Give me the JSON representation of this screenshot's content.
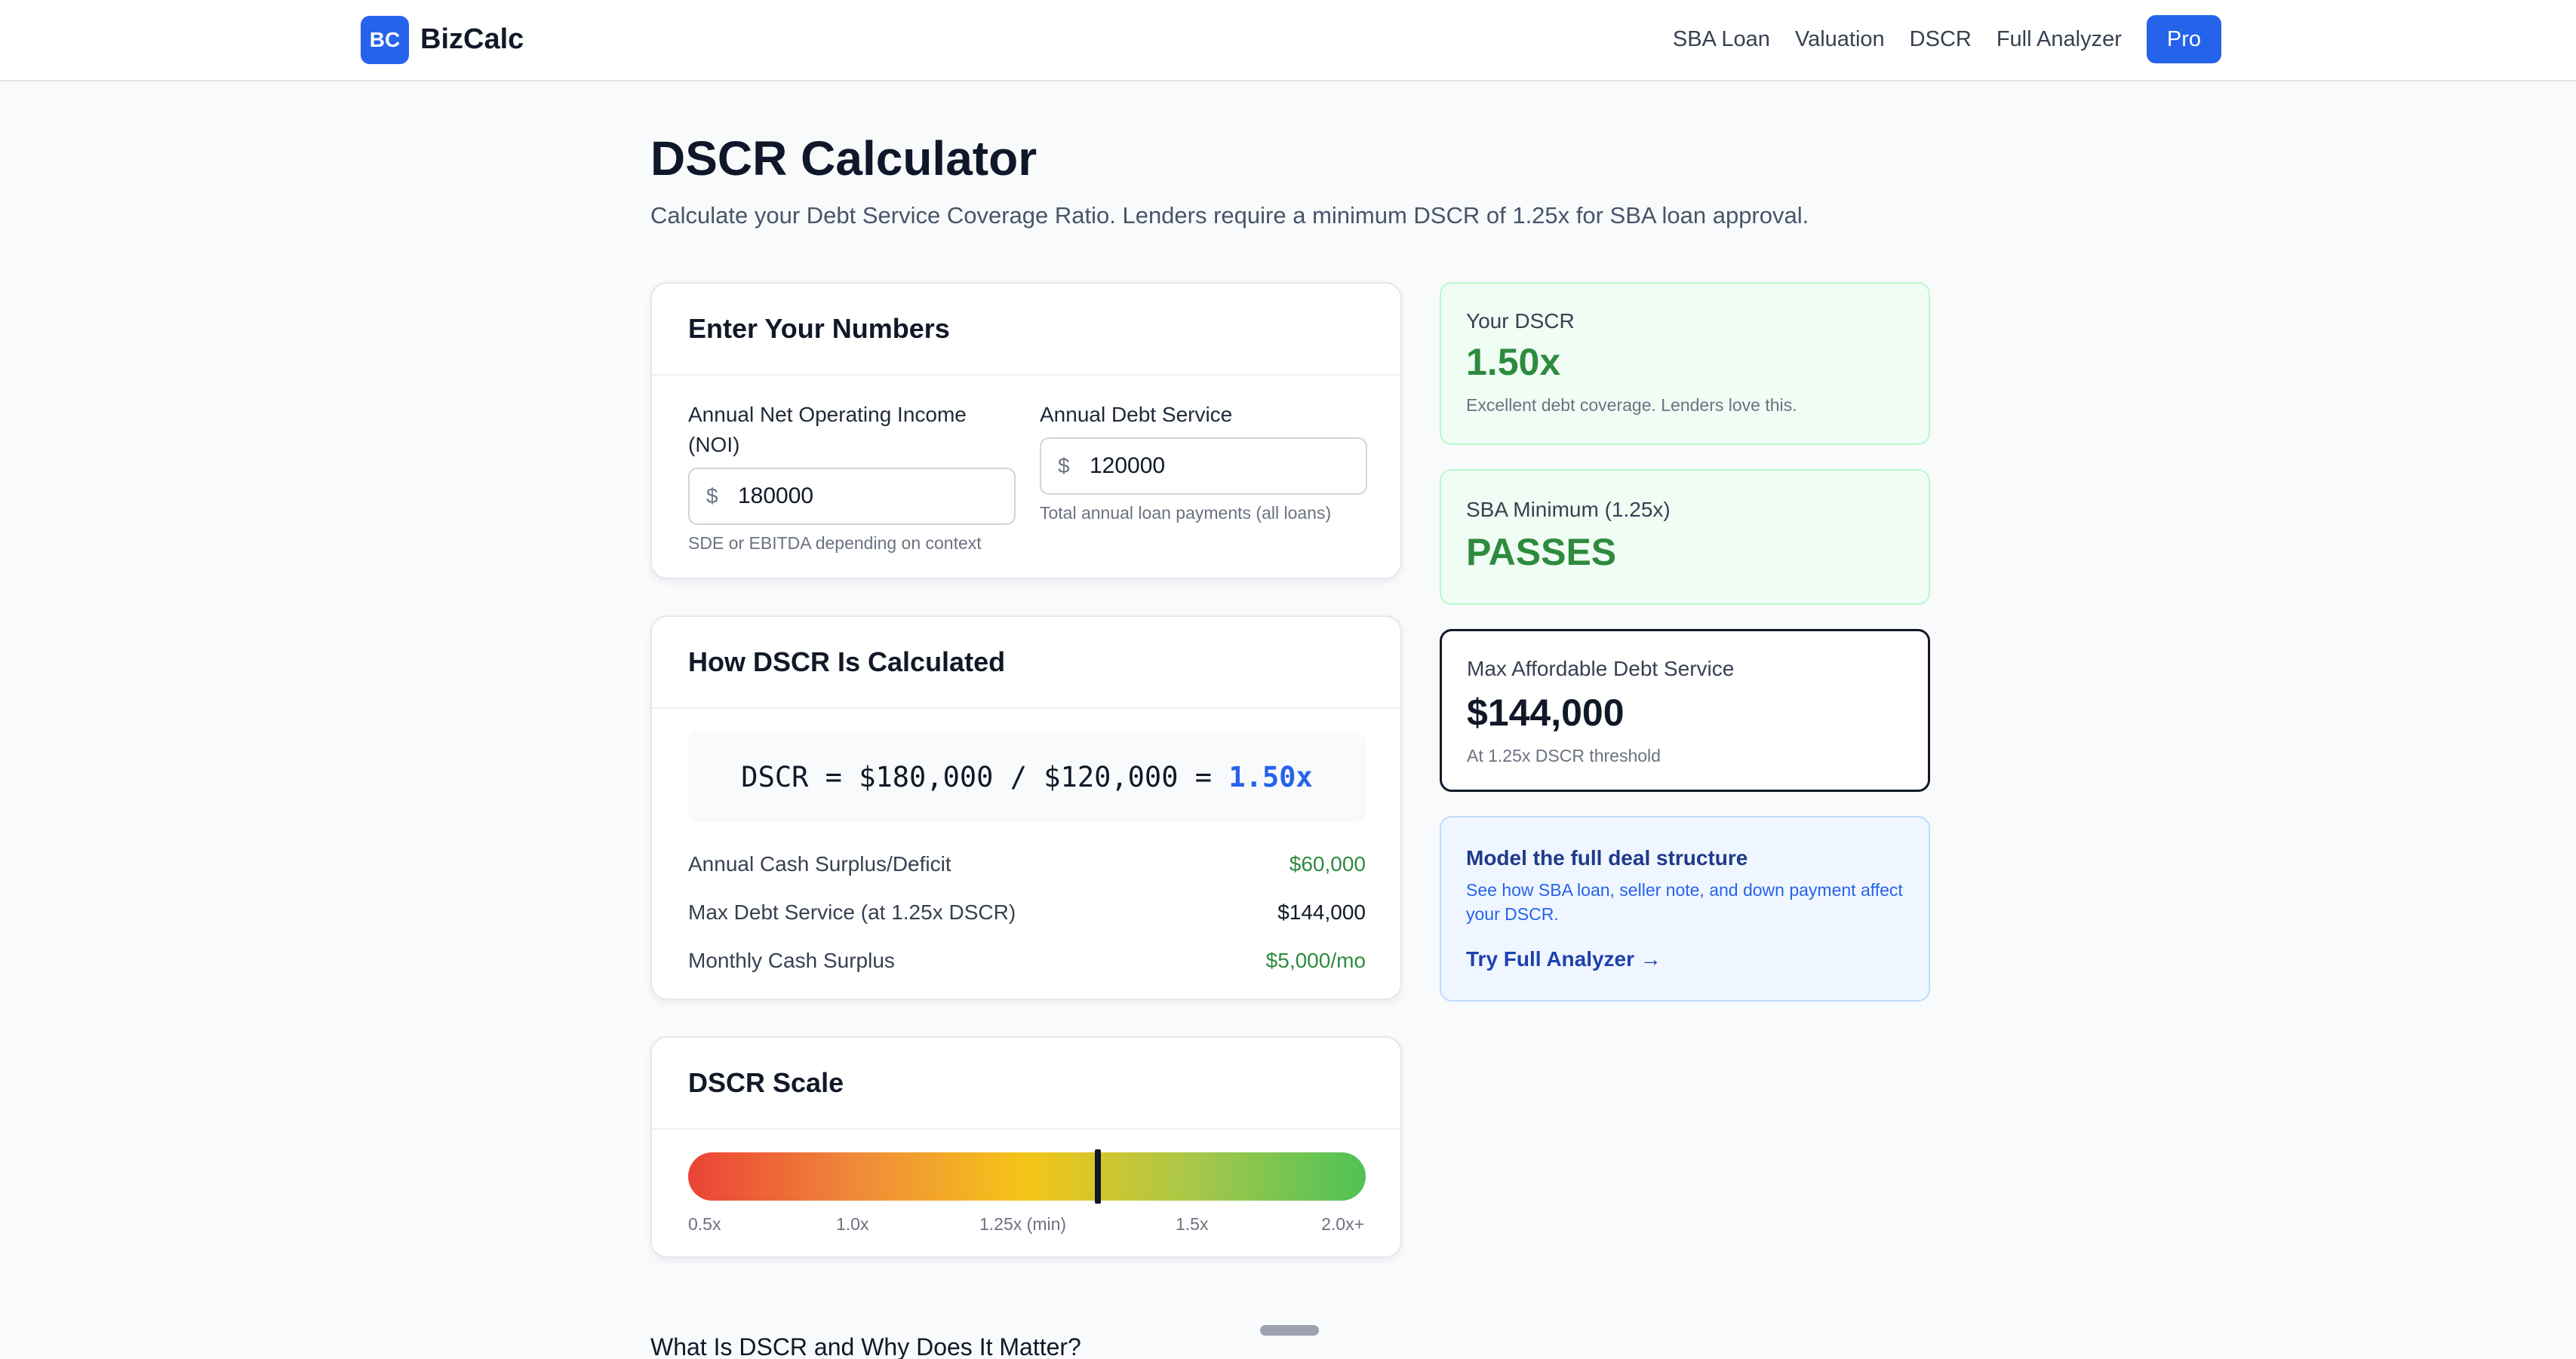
{
  "header": {
    "logo_badge": "BC",
    "logo_text": "BizCalc",
    "nav": [
      "SBA Loan",
      "Valuation",
      "DSCR",
      "Full Analyzer"
    ],
    "pro_label": "Pro"
  },
  "page": {
    "title": "DSCR Calculator",
    "subtitle": "Calculate your Debt Service Coverage Ratio. Lenders require a minimum DSCR of 1.25x for SBA loan approval."
  },
  "inputs_card": {
    "title": "Enter Your Numbers",
    "noi": {
      "label": "Annual Net Operating Income (NOI)",
      "currency": "$",
      "value": "180000",
      "help": "SDE or EBITDA depending on context"
    },
    "debt": {
      "label": "Annual Debt Service",
      "currency": "$",
      "value": "120000",
      "help": "Total annual loan payments (all loans)"
    }
  },
  "calc_card": {
    "title": "How DSCR Is Calculated",
    "formula": "DSCR = $180,000 / $120,000 = ",
    "formula_result": "1.50x",
    "rows": [
      {
        "label": "Annual Cash Surplus/Deficit",
        "value": "$60,000"
      },
      {
        "label": "Max Debt Service (at 1.25x DSCR)",
        "value": "$144,000"
      },
      {
        "label": "Monthly Cash Surplus",
        "value": "$5,000/mo"
      }
    ]
  },
  "scale_card": {
    "title": "DSCR Scale",
    "marker_fraction": 0.605,
    "labels": [
      "0.5x",
      "1.0x",
      "1.25x (min)",
      "1.5x",
      "2.0x+"
    ]
  },
  "results": {
    "dscr": {
      "label": "Your DSCR",
      "value": "1.50x",
      "note": "Excellent debt coverage. Lenders love this."
    },
    "sba": {
      "label": "SBA Minimum (1.25x)",
      "value": "PASSES"
    },
    "max": {
      "label": "Max Affordable Debt Service",
      "value": "$144,000",
      "note": "At 1.25x DSCR threshold"
    }
  },
  "promo": {
    "title": "Model the full deal structure",
    "text": "See how SBA loan, seller note, and down payment affect your DSCR.",
    "link": "Try Full Analyzer →"
  },
  "bottom_heading": "What Is DSCR and Why Does It Matter?",
  "colors": {
    "accent": "#2563eb",
    "success": "#2e8b3e",
    "success_bg": "#f0fdf4",
    "promo_bg": "#eff6ff"
  }
}
